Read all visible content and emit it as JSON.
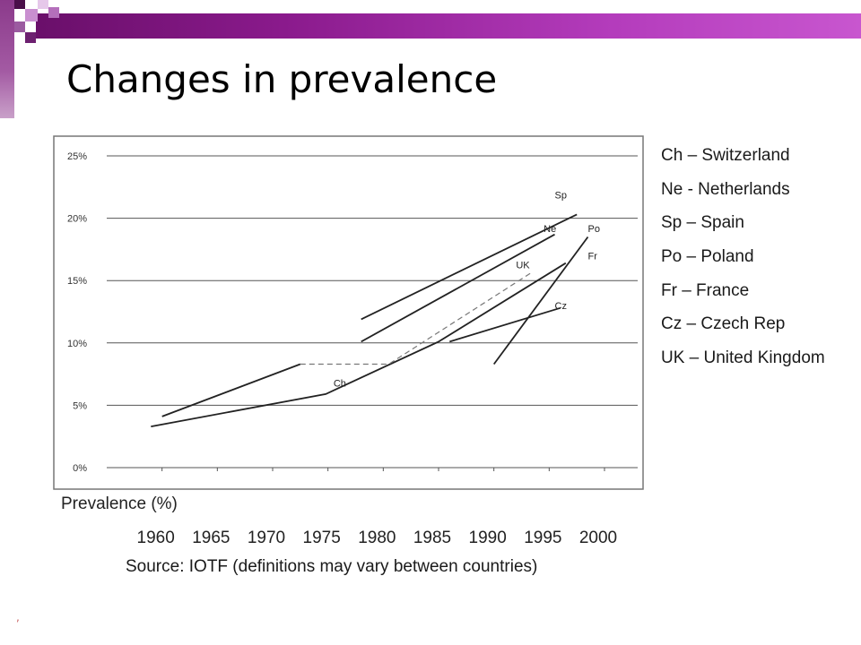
{
  "slide": {
    "title": "Changes in prevalence",
    "source": "Source: IOTF (definitions may vary between countries)",
    "page_mark": ","
  },
  "legend": [
    {
      "code": "Ch",
      "label": "Ch – Switzerland"
    },
    {
      "code": "Ne",
      "label": "Ne - Netherlands"
    },
    {
      "code": "Sp",
      "label": "Sp – Spain"
    },
    {
      "code": "Po",
      "label": "Po – Poland"
    },
    {
      "code": "Fr",
      "label": "Fr – France"
    },
    {
      "code": "Cz",
      "label": "Cz – Czech Rep"
    },
    {
      "code": "UK",
      "label": "UK – United Kingdom"
    }
  ],
  "colors": {
    "deco_accent": "#8a1a8c",
    "series_line": "#222222",
    "grid": "#555555"
  },
  "chart_data": {
    "type": "line",
    "xlabel": "",
    "ylabel": "Prevalence (%)",
    "x_ticks": [
      "1960",
      "1965",
      "1970",
      "1975",
      "1980",
      "1985",
      "1990",
      "1995",
      "2000"
    ],
    "y_ticks": [
      "0%",
      "5%",
      "10%",
      "15%",
      "20%",
      "25%"
    ],
    "xlim": [
      1955,
      2003
    ],
    "ylim": [
      0,
      25
    ],
    "grid": true,
    "legend_position": "right",
    "series": [
      {
        "name": "Ch",
        "dashed": false,
        "points": [
          [
            1960,
            4.1
          ],
          [
            1972.5,
            8.3
          ]
        ]
      },
      {
        "name": "Ch",
        "dashed": false,
        "points": [
          [
            1959,
            3.3
          ],
          [
            1974.8,
            5.9
          ],
          [
            1985,
            10.1
          ],
          [
            1996.5,
            16.4
          ]
        ]
      },
      {
        "name": "Ne",
        "dashed": false,
        "points": [
          [
            1978,
            10.1
          ],
          [
            1995.5,
            18.7
          ]
        ]
      },
      {
        "name": "Sp",
        "dashed": false,
        "points": [
          [
            1978,
            11.9
          ],
          [
            1997.5,
            20.3
          ]
        ]
      },
      {
        "name": "Po",
        "dashed": false,
        "points": [
          [
            1990,
            8.3
          ],
          [
            1998.5,
            18.5
          ]
        ]
      },
      {
        "name": "Cz",
        "dashed": false,
        "points": [
          [
            1986,
            10.1
          ],
          [
            1996,
            12.8
          ]
        ]
      },
      {
        "name": "UK",
        "dashed": true,
        "points": [
          [
            1972.5,
            8.3
          ],
          [
            1980.5,
            8.3
          ],
          [
            1993.5,
            15.7
          ]
        ]
      }
    ],
    "labels": [
      {
        "text": "Sp",
        "x": 1995.5,
        "y": 21.6
      },
      {
        "text": "Ne",
        "x": 1994.5,
        "y": 18.9
      },
      {
        "text": "Po",
        "x": 1998.5,
        "y": 18.9
      },
      {
        "text": "UK",
        "x": 1992,
        "y": 16.0
      },
      {
        "text": "Fr",
        "x": 1998.5,
        "y": 16.7
      },
      {
        "text": "Cz",
        "x": 1995.5,
        "y": 12.7
      },
      {
        "text": "Ch",
        "x": 1975.5,
        "y": 6.5
      }
    ]
  }
}
